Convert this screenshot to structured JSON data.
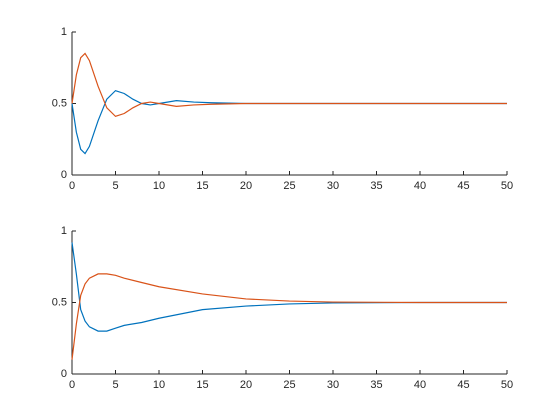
{
  "chart_data": [
    {
      "type": "line",
      "x": [
        0,
        0.5,
        1,
        1.5,
        2,
        3,
        4,
        5,
        6,
        7,
        8,
        9,
        10,
        12,
        14,
        16,
        20,
        25,
        30,
        40,
        50
      ],
      "series": [
        {
          "color": "#0072bd",
          "values": [
            0.5,
            0.3,
            0.18,
            0.15,
            0.2,
            0.38,
            0.53,
            0.59,
            0.57,
            0.53,
            0.5,
            0.49,
            0.5,
            0.52,
            0.51,
            0.505,
            0.5,
            0.5,
            0.5,
            0.5,
            0.5
          ]
        },
        {
          "color": "#d95319",
          "values": [
            0.5,
            0.7,
            0.82,
            0.85,
            0.8,
            0.62,
            0.47,
            0.41,
            0.43,
            0.47,
            0.5,
            0.51,
            0.5,
            0.48,
            0.49,
            0.495,
            0.5,
            0.5,
            0.5,
            0.5,
            0.5
          ]
        }
      ],
      "xlim": [
        0,
        50
      ],
      "ylim": [
        0,
        1
      ],
      "xticks": [
        0,
        5,
        10,
        15,
        20,
        25,
        30,
        35,
        40,
        45,
        50
      ],
      "yticks": [
        0,
        0.5,
        1
      ]
    },
    {
      "type": "line",
      "x": [
        0,
        0.5,
        1,
        1.5,
        2,
        3,
        4,
        5,
        6,
        8,
        10,
        15,
        20,
        25,
        30,
        40,
        50
      ],
      "series": [
        {
          "color": "#0072bd",
          "values": [
            0.92,
            0.7,
            0.45,
            0.37,
            0.33,
            0.3,
            0.3,
            0.32,
            0.34,
            0.36,
            0.39,
            0.45,
            0.475,
            0.49,
            0.497,
            0.5,
            0.5
          ]
        },
        {
          "color": "#d95319",
          "values": [
            0.1,
            0.35,
            0.55,
            0.63,
            0.67,
            0.7,
            0.7,
            0.69,
            0.67,
            0.64,
            0.61,
            0.56,
            0.525,
            0.51,
            0.503,
            0.5,
            0.5
          ]
        }
      ],
      "xlim": [
        0,
        50
      ],
      "ylim": [
        0,
        1
      ],
      "xticks": [
        0,
        5,
        10,
        15,
        20,
        25,
        30,
        35,
        40,
        45,
        50
      ],
      "yticks": [
        0,
        0.5,
        1
      ]
    }
  ]
}
